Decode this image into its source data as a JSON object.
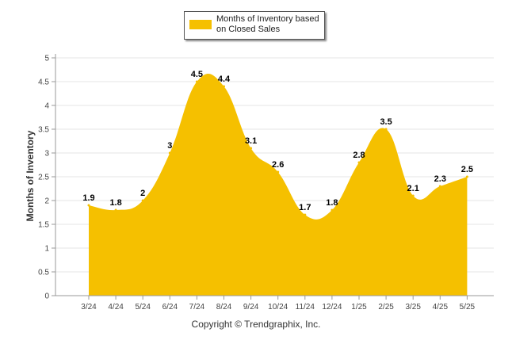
{
  "chart_data": {
    "type": "area",
    "categories": [
      "3/24",
      "4/24",
      "5/24",
      "6/24",
      "7/24",
      "8/24",
      "9/24",
      "10/24",
      "11/24",
      "12/24",
      "1/25",
      "2/25",
      "3/25",
      "4/25",
      "5/25"
    ],
    "series": [
      {
        "name": "Months of Inventory based on Closed Sales",
        "values": [
          1.9,
          1.8,
          2,
          3,
          4.5,
          4.4,
          3.1,
          2.6,
          1.7,
          1.8,
          2.8,
          3.5,
          2.1,
          2.3,
          2.5
        ],
        "data_labels": [
          "1.9",
          "1.8",
          "2",
          "3",
          "4.5",
          "4.4",
          "3.1",
          "2.6",
          "1.7",
          "1.8",
          "2.8",
          "3.5",
          "2.1",
          "2.3",
          "2.5"
        ]
      }
    ],
    "ylabel": "Months of Inventory",
    "xlabel": "",
    "ylim": [
      0,
      5
    ],
    "yticks": [
      "0",
      "0.5",
      "1",
      "1.5",
      "2",
      "2.5",
      "3",
      "3.5",
      "4",
      "4.5",
      "5"
    ],
    "grid": true,
    "legend_position": "top-center",
    "colors": {
      "fill": "#f5c000",
      "grid": "#e6e6e6",
      "axis": "#999999"
    }
  },
  "footer": {
    "copyright": "Copyright © Trendgraphix, Inc."
  }
}
